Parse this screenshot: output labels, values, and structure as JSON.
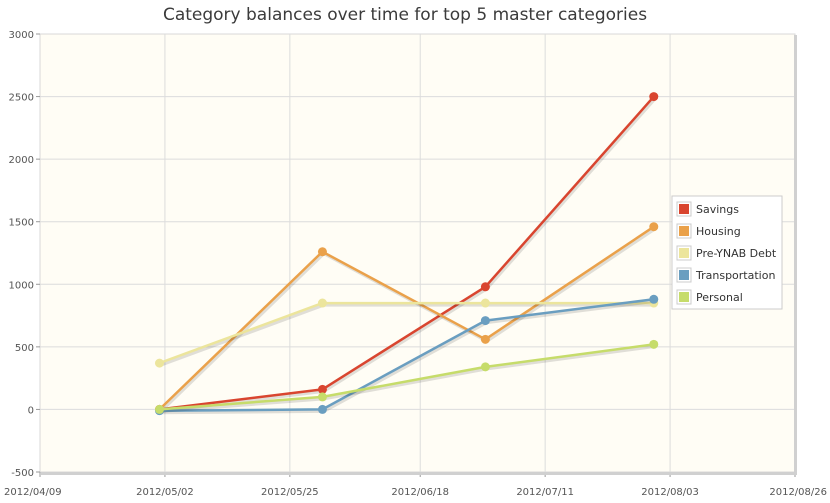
{
  "chart_data": {
    "type": "line",
    "title": "Category balances over time for top 5 master categories",
    "xlabel": "",
    "ylabel": "",
    "x_ticks": [
      "2012/04/09",
      "2012/05/02",
      "2012/05/25",
      "2012/06/18",
      "2012/07/11",
      "2012/08/03",
      "2012/08/26"
    ],
    "y_ticks": [
      -500,
      0,
      500,
      1000,
      1500,
      2000,
      2500,
      3000
    ],
    "xlim": [
      "2012/04/09",
      "2012/08/26"
    ],
    "ylim": [
      -500,
      3000
    ],
    "grid": true,
    "legend_position": "right",
    "x": [
      "2012/05/01",
      "2012/05/31",
      "2012/06/30",
      "2012/07/31"
    ],
    "series": [
      {
        "name": "Savings",
        "color": "#d9452f",
        "values": [
          0,
          160,
          980,
          2500
        ]
      },
      {
        "name": "Housing",
        "color": "#eaa14a",
        "values": [
          0,
          1260,
          560,
          1460
        ]
      },
      {
        "name": "Pre-YNAB Debt",
        "color": "#ece59c",
        "values": [
          370,
          850,
          850,
          850
        ]
      },
      {
        "name": "Transportation",
        "color": "#6a9ec0",
        "values": [
          -10,
          0,
          710,
          880
        ]
      },
      {
        "name": "Personal",
        "color": "#c6dc6a",
        "values": [
          0,
          100,
          340,
          520
        ]
      }
    ]
  }
}
